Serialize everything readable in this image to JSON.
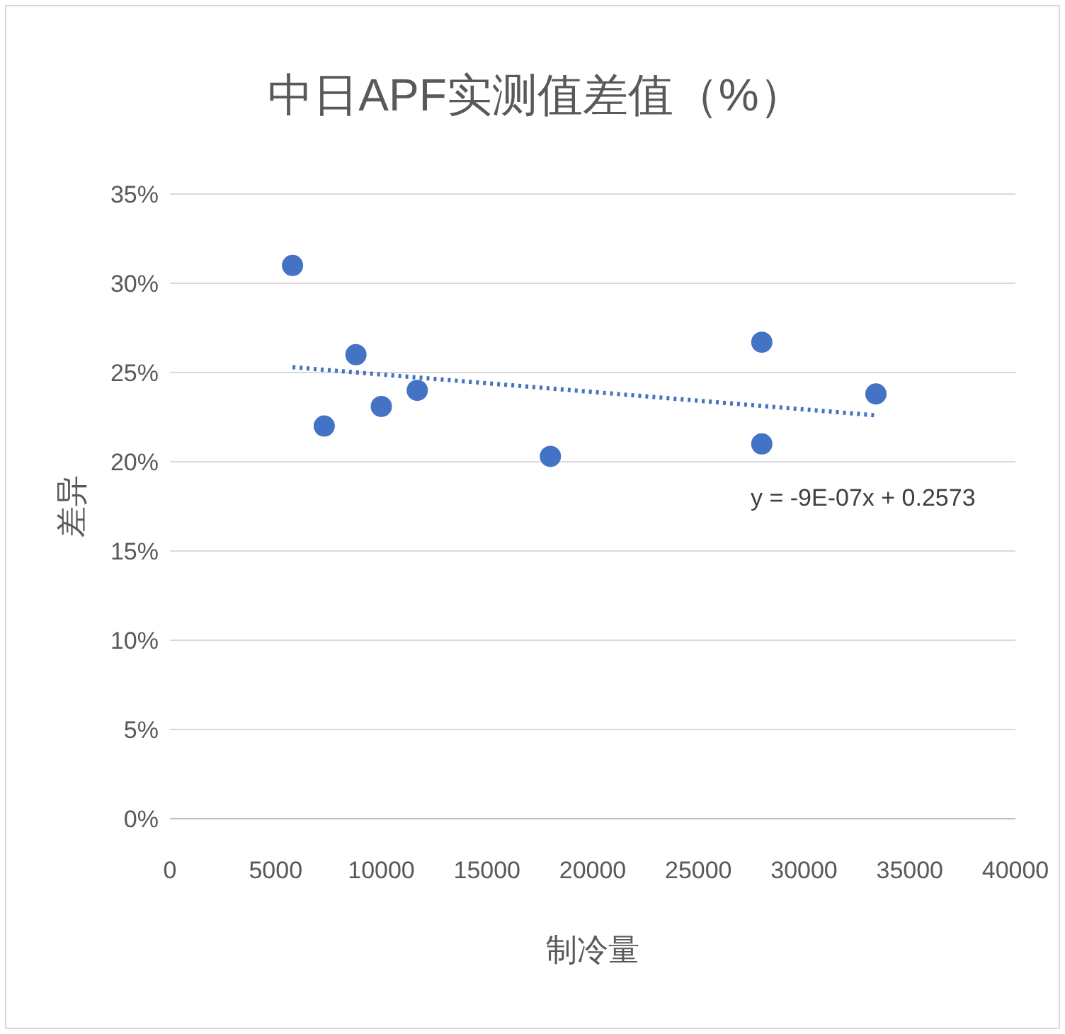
{
  "chart_data": {
    "type": "scatter",
    "title": "中日APF实测值差值（%）",
    "xlabel": "制冷量",
    "ylabel": "差异",
    "annotations": [
      "y = -9E-07x + 0.2573"
    ],
    "series": [
      {
        "color": "#4472c4",
        "marker": "circle",
        "x": [
          5800,
          7300,
          8800,
          10000,
          11700,
          18000,
          28000,
          28000,
          33400
        ],
        "values": [
          31.0,
          22.0,
          26.0,
          23.1,
          24.0,
          20.3,
          26.7,
          21.0,
          23.8
        ]
      },
      {
        "type": "line",
        "color": "#4472c4",
        "line_style": "dotted",
        "x": [
          5800,
          33400
        ],
        "values": [
          25.3,
          22.6
        ]
      }
    ],
    "xlim": [
      0,
      40000
    ],
    "xticks": [
      0,
      5000,
      10000,
      15000,
      20000,
      25000,
      30000,
      35000,
      40000
    ],
    "ylim": [
      0,
      35
    ],
    "yticks": [
      {
        "value": 0,
        "label": "0%"
      },
      {
        "value": 5,
        "label": "5%"
      },
      {
        "value": 10,
        "label": "10%"
      },
      {
        "value": 15,
        "label": "15%"
      },
      {
        "value": 20,
        "label": "20%"
      },
      {
        "value": 25,
        "label": "25%"
      },
      {
        "value": 30,
        "label": "30%"
      },
      {
        "value": 35,
        "label": "35%"
      }
    ],
    "grid": "y"
  }
}
